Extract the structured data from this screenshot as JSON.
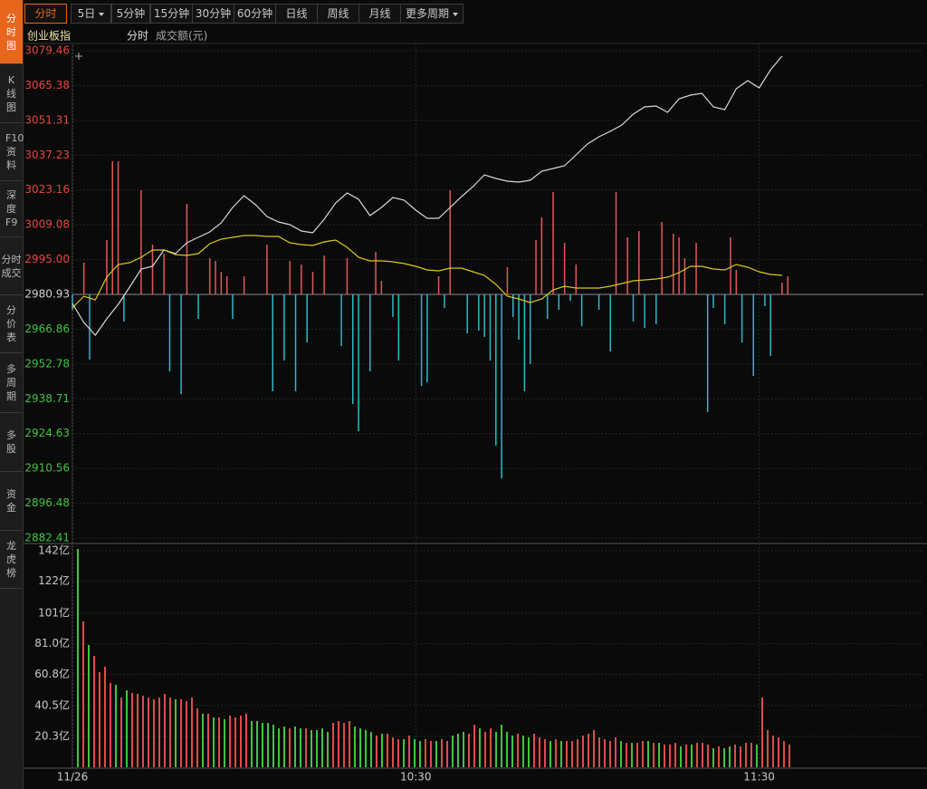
{
  "sidebar": [
    "分时图",
    "K线图",
    "F10资料",
    "深度F9",
    "分时成交",
    "分价表",
    "多周期",
    "多股",
    "资金",
    "龙虎榜"
  ],
  "toolbar": [
    "分时",
    "5日",
    "5分钟",
    "15分钟",
    "30分钟",
    "60分钟",
    "日线",
    "周线",
    "月线",
    "更多周期"
  ],
  "legend": {
    "name": "创业板指",
    "mode": "分时",
    "volume": "成交额(元)"
  },
  "chart_data": [
    {
      "type": "line",
      "xlim": [
        0,
        148.7
      ],
      "xticks": [
        {
          "value": 0,
          "label": "11/26"
        },
        {
          "value": 60,
          "label": "10:30"
        },
        {
          "value": 120,
          "label": "11:30"
        }
      ],
      "ylim": [
        2882.41,
        3079.46
      ],
      "yticks": [
        3079.46,
        3065.38,
        3051.31,
        3037.23,
        3023.16,
        3009.08,
        {
          "value": 2995,
          "label": "2995.00"
        },
        2980.93,
        2966.86,
        2952.78,
        2938.71,
        2924.63,
        2910.56,
        2896.48,
        2882.41
      ],
      "baseline": 2980.93,
      "tick_up_color": "#e8453f",
      "tick_down_color": "#3dc43d",
      "tick_base_color": "#d0d0d0",
      "grid": true,
      "x": [
        0,
        2,
        4,
        6,
        8,
        10,
        12,
        14,
        16,
        18,
        20,
        22,
        24,
        26,
        28,
        30,
        32,
        34,
        36,
        38,
        40,
        42,
        44,
        46,
        48,
        50,
        52,
        54,
        56,
        58,
        60,
        62,
        64,
        66,
        68,
        70,
        72,
        74,
        76,
        78,
        80,
        82,
        84,
        86,
        88,
        90,
        92,
        94,
        96,
        98,
        100,
        102,
        104,
        106,
        108,
        110,
        112,
        114,
        116,
        118,
        120,
        122,
        124
      ],
      "series": [
        {
          "color": "#d8d8d8",
          "values": [
            2977.27,
            2969.58,
            2964.45,
            2971.05,
            2976.91,
            2983.87,
            2991.19,
            2992.29,
            2998.88,
            2997.42,
            3001.81,
            3004.01,
            3006.21,
            3009.87,
            3016.1,
            3020.86,
            3017.2,
            3012.43,
            3010.24,
            3009.14,
            3006.57,
            3005.84,
            3011.34,
            3017.93,
            3021.96,
            3019.39,
            3012.8,
            3016.1,
            3020.13,
            3019.03,
            3015.0,
            3011.7,
            3011.7,
            3016.1,
            3020.49,
            3024.52,
            3029.28,
            3027.82,
            3026.72,
            3026.35,
            3027.08,
            3030.75,
            3031.85,
            3032.94,
            3037.34,
            3041.74,
            3044.67,
            3046.86,
            3049.43,
            3053.82,
            3056.75,
            3057.12,
            3054.55,
            3060.05,
            3061.51,
            3062.25,
            3056.75,
            3055.65,
            3064.08,
            3067.37,
            3064.44,
            3071.77,
            3077.26
          ]
        },
        {
          "color": "#d9c81c",
          "values": [
            2975.44,
            2980.2,
            2978.74,
            2987.89,
            2993.02,
            2993.76,
            2995.95,
            2998.88,
            2998.88,
            2997.05,
            2996.69,
            2997.42,
            3001.45,
            3003.28,
            3004.01,
            3004.74,
            3004.74,
            3004.38,
            3004.38,
            3001.81,
            3001.08,
            3000.71,
            3002.18,
            3002.91,
            2999.98,
            2995.95,
            2994.49,
            2994.49,
            2994.12,
            2993.39,
            2992.29,
            2990.83,
            2990.46,
            2991.56,
            2991.56,
            2990.09,
            2988.63,
            2984.96,
            2980.2,
            2979.1,
            2977.64,
            2979.1,
            2982.77,
            2984.23,
            2983.5,
            2983.5,
            2983.5,
            2984.23,
            2985.33,
            2986.43,
            2986.8,
            2987.16,
            2987.89,
            2989.73,
            2992.29,
            2992.29,
            2991.19,
            2990.83,
            2993.02,
            2991.92,
            2990.09,
            2989.0,
            2988.63
          ]
        }
      ],
      "bars": {
        "up_color": "#e05858",
        "down_color": "#2fb8c8",
        "x": [
          0,
          2,
          3,
          6,
          7,
          8,
          9,
          12,
          14,
          16,
          17,
          19,
          20,
          22,
          24,
          25,
          26,
          27,
          28,
          30,
          34,
          35,
          37,
          38,
          39,
          40,
          41,
          42,
          44,
          47,
          48,
          49,
          50,
          52,
          53,
          54,
          56,
          57,
          61,
          62,
          64,
          65,
          66,
          69,
          71,
          72,
          73,
          74,
          75,
          76,
          77,
          78,
          79,
          80,
          81,
          82,
          83,
          84,
          85,
          86,
          87,
          88,
          89,
          92,
          94,
          95,
          97,
          98,
          99,
          100,
          102,
          103,
          105,
          106,
          107,
          109,
          111,
          112,
          114,
          115,
          116,
          117,
          119,
          121,
          122,
          124,
          125
        ],
        "values": [
          2974.71,
          2993.76,
          2954.57,
          3002.91,
          3034.78,
          3034.78,
          2969.95,
          3023.06,
          3001.08,
          2997.42,
          2949.8,
          2940.65,
          3017.56,
          2971.05,
          2995.59,
          2994.49,
          2990.09,
          2988.26,
          2971.05,
          2988.26,
          3001.08,
          2941.75,
          2954.2,
          2994.49,
          2941.75,
          2993.02,
          2961.52,
          2990.09,
          2996.69,
          2960.06,
          2995.59,
          2936.62,
          2925.63,
          2949.8,
          2998.15,
          2986.43,
          2971.78,
          2954.2,
          2943.94,
          2945.41,
          2988.26,
          2975.44,
          3023.06,
          2965.19,
          2966.29,
          2963.72,
          2954.2,
          2919.77,
          2906.58,
          2991.92,
          2971.78,
          2962.62,
          2941.75,
          2952.73,
          3002.91,
          3012.07,
          2971.05,
          3022.32,
          2974.71,
          3001.81,
          2978.37,
          2993.02,
          2968.12,
          2974.71,
          2957.86,
          3022.32,
          3004.01,
          2969.95,
          3006.57,
          2967.38,
          2968.85,
          3010.24,
          3005.48,
          3004.01,
          2995.59,
          3001.81,
          2933.32,
          2975.44,
          2968.85,
          3004.01,
          2990.83,
          2961.52,
          2947.97,
          2976.18,
          2956.03,
          2985.7,
          2988.26
        ]
      }
    },
    {
      "type": "bar",
      "ylim": [
        0,
        142
      ],
      "yticks": [
        {
          "value": 142,
          "label": "142亿"
        },
        {
          "value": 122,
          "label": "122亿"
        },
        {
          "value": 101,
          "label": "101亿"
        },
        {
          "value": 81,
          "label": "81.0亿"
        },
        {
          "value": 60.8,
          "label": "60.8亿"
        },
        {
          "value": 40.5,
          "label": "40.5亿"
        },
        {
          "value": 20.3,
          "label": "20.3亿"
        }
      ],
      "grid": true,
      "values": [
        143.2,
        95.7,
        80.2,
        73.1,
        62.4,
        65.9,
        55.3,
        54.1,
        45.7,
        50.5,
        48.7,
        48.1,
        46.9,
        45.7,
        44.6,
        45.7,
        48.1,
        45.7,
        44.6,
        44.6,
        43.4,
        45.7,
        38.6,
        35.1,
        35.1,
        32.7,
        32.7,
        31.5,
        33.9,
        32.7,
        33.9,
        35.1,
        30.3,
        30.3,
        29.1,
        29.1,
        27.9,
        25.5,
        26.7,
        25.5,
        26.7,
        25.5,
        25.5,
        24.4,
        24.4,
        25.5,
        23.2,
        29.1,
        30.3,
        29.1,
        30.3,
        26.7,
        25.5,
        24.4,
        23.2,
        20.8,
        22.0,
        22.0,
        19.6,
        18.4,
        18.4,
        20.8,
        18.4,
        17.2,
        18.4,
        17.2,
        17.2,
        18.4,
        17.2,
        20.8,
        22.0,
        23.2,
        22.0,
        27.9,
        25.5,
        23.2,
        25.5,
        23.2,
        27.9,
        23.2,
        20.8,
        22.0,
        20.8,
        19.6,
        22.0,
        19.6,
        18.4,
        17.2,
        18.4,
        17.2,
        17.2,
        17.2,
        18.4,
        20.8,
        22.0,
        24.4,
        19.6,
        18.4,
        17.2,
        19.6,
        17.2,
        16.0,
        16.0,
        16.0,
        17.2,
        17.2,
        16.0,
        16.0,
        14.9,
        14.9,
        16.0,
        13.7,
        14.9,
        14.9,
        16.0,
        16.0,
        14.9,
        12.5,
        13.7,
        12.5,
        13.7,
        14.9,
        13.7,
        16.0,
        16.0,
        14.9,
        45.7,
        24.4,
        20.8,
        19.6,
        17.2,
        14.9
      ],
      "colors": [
        "#3fc53f",
        "#e24a4a",
        "#3fc53f",
        "#e24a4a",
        "#e24a4a",
        "#e24a4a",
        "#e24a4a",
        "#3fc53f",
        "#e24a4a",
        "#3fc53f",
        "#e24a4a",
        "#e24a4a",
        "#e24a4a",
        "#e24a4a",
        "#e24a4a",
        "#e24a4a",
        "#e24a4a",
        "#e24a4a",
        "#3fc53f",
        "#e24a4a",
        "#e24a4a",
        "#e24a4a",
        "#e24a4a",
        "#3fc53f",
        "#e24a4a",
        "#3fc53f",
        "#e24a4a",
        "#3fc53f",
        "#e24a4a",
        "#e24a4a",
        "#e24a4a",
        "#e24a4a",
        "#3fc53f",
        "#3fc53f",
        "#3fc53f",
        "#3fc53f",
        "#3fc53f",
        "#3fc53f",
        "#3fc53f",
        "#e24a4a",
        "#3fc53f",
        "#3fc53f",
        "#e24a4a",
        "#3fc53f",
        "#3fc53f",
        "#3fc53f",
        "#3fc53f",
        "#e24a4a",
        "#e24a4a",
        "#e24a4a",
        "#e24a4a",
        "#3fc53f",
        "#3fc53f",
        "#3fc53f",
        "#3fc53f",
        "#e24a4a",
        "#3fc53f",
        "#e24a4a",
        "#e24a4a",
        "#e24a4a",
        "#3fc53f",
        "#e24a4a",
        "#3fc53f",
        "#3fc53f",
        "#e24a4a",
        "#e24a4a",
        "#3fc53f",
        "#e24a4a",
        "#e24a4a",
        "#3fc53f",
        "#3fc53f",
        "#3fc53f",
        "#e24a4a",
        "#e24a4a",
        "#3fc53f",
        "#e24a4a",
        "#e24a4a",
        "#3fc53f",
        "#3fc53f",
        "#3fc53f",
        "#3fc53f",
        "#e24a4a",
        "#3fc53f",
        "#3fc53f",
        "#e24a4a",
        "#e24a4a",
        "#e24a4a",
        "#3fc53f",
        "#e24a4a",
        "#3fc53f",
        "#e24a4a",
        "#e24a4a",
        "#e24a4a",
        "#e24a4a",
        "#e24a4a",
        "#e24a4a",
        "#e24a4a",
        "#e24a4a",
        "#e24a4a",
        "#e24a4a",
        "#3fc53f",
        "#e24a4a",
        "#3fc53f",
        "#e24a4a",
        "#e24a4a",
        "#3fc53f",
        "#e24a4a",
        "#3fc53f",
        "#e24a4a",
        "#e24a4a",
        "#e24a4a",
        "#3fc53f",
        "#e24a4a",
        "#3fc53f",
        "#e24a4a",
        "#e24a4a",
        "#e24a4a",
        "#3fc53f",
        "#e24a4a",
        "#3fc53f",
        "#3fc53f",
        "#e24a4a",
        "#e24a4a",
        "#e24a4a",
        "#e24a4a",
        "#3fc53f",
        "#e24a4a",
        "#e24a4a",
        "#e24a4a",
        "#e24a4a",
        "#e24a4a",
        "#e24a4a"
      ]
    }
  ]
}
